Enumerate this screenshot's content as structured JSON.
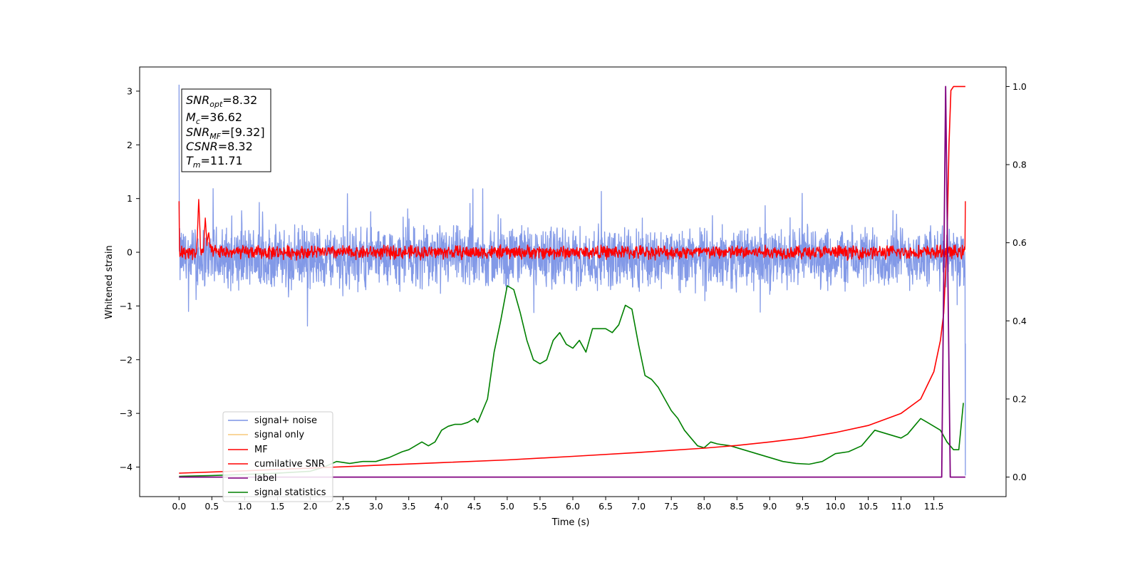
{
  "chart_data": {
    "type": "line",
    "xlabel": "Time (s)",
    "ylabel": "Whitened strain",
    "xlim": [
      -0.6,
      12.6
    ],
    "ylim": [
      -4.55,
      3.45
    ],
    "y2lim": [
      -0.05,
      1.05
    ],
    "x_ticks": [
      "0.0",
      "0.5",
      "1.0",
      "1.5",
      "2.0",
      "2.5",
      "3.0",
      "3.5",
      "4.0",
      "4.5",
      "5.0",
      "5.5",
      "6.0",
      "6.5",
      "7.0",
      "7.5",
      "8.0",
      "8.5",
      "9.0",
      "9.5",
      "10.0",
      "10.5",
      "11.0",
      "11.5"
    ],
    "y_ticks": [
      "3",
      "2",
      "1",
      "0",
      "−1",
      "−2",
      "−3",
      "−4"
    ],
    "y2_ticks": [
      "1.0",
      "0.8",
      "0.6",
      "0.4",
      "0.2",
      "0.0"
    ],
    "annotation": {
      "lines": [
        {
          "italic": "SNR",
          "sub": "opt",
          "rest": "=8.32"
        },
        {
          "italic": "M",
          "sub": "c",
          "rest": "=36.62"
        },
        {
          "italic": "SNR",
          "sub": "MF",
          "rest": "=[9.32]"
        },
        {
          "italic": "CSNR",
          "sub": "",
          "rest": "=8.32"
        },
        {
          "italic": "T",
          "sub": "m",
          "rest": "=11.71"
        }
      ]
    },
    "legend": {
      "placement": "lower-left",
      "entries": [
        {
          "label": "signal+ noise",
          "color": "#7b93e6"
        },
        {
          "label": "signal only",
          "color": "#f7c97a"
        },
        {
          "label": "MF",
          "color": "#ff0000"
        },
        {
          "label": "cumilative SNR",
          "color": "#ff0000"
        },
        {
          "label": "label",
          "color": "#800080"
        },
        {
          "label": "signal statistics",
          "color": "#008000"
        }
      ]
    },
    "series": [
      {
        "name": "signal+ noise",
        "color": "#7b93e6",
        "axis": "left",
        "kind": "noise",
        "x_range": [
          0.0,
          11.98
        ],
        "center": -0.1,
        "amplitude": 0.45,
        "spike_max": 1.6,
        "start_value": 3.12,
        "end_values": [
          -4.15,
          -1.7
        ]
      },
      {
        "name": "MF",
        "color": "#ff0000",
        "axis": "left",
        "kind": "noise",
        "x_range": [
          0.0,
          11.98
        ],
        "center": 0.0,
        "amplitude": 0.1,
        "start_value": 0.95,
        "end_value": 0.95,
        "bumps": [
          {
            "x": 0.3,
            "y": 1.0
          },
          {
            "x": 0.4,
            "y": 0.65
          },
          {
            "x": 0.45,
            "y": 0.4
          }
        ]
      },
      {
        "name": "cumilative SNR",
        "color": "#ff0000",
        "axis": "right",
        "x": [
          0.0,
          1.0,
          2.0,
          3.0,
          4.0,
          5.0,
          6.0,
          7.0,
          8.0,
          8.5,
          9.0,
          9.5,
          10.0,
          10.5,
          11.0,
          11.3,
          11.5,
          11.6,
          11.65,
          11.7,
          11.73,
          11.76,
          11.8,
          11.98
        ],
        "y": [
          0.01,
          0.016,
          0.023,
          0.03,
          0.037,
          0.044,
          0.053,
          0.063,
          0.074,
          0.081,
          0.09,
          0.1,
          0.114,
          0.132,
          0.163,
          0.2,
          0.27,
          0.35,
          0.42,
          0.6,
          0.85,
          0.99,
          1.0,
          1.0
        ]
      },
      {
        "name": "label",
        "color": "#800080",
        "axis": "right",
        "x": [
          0.0,
          11.62,
          11.68,
          11.75,
          11.76,
          11.98
        ],
        "y": [
          0.0,
          0.0,
          1.0,
          0.0,
          0.0,
          0.0
        ]
      },
      {
        "name": "signal statistics",
        "color": "#008000",
        "axis": "right",
        "x": [
          0.0,
          0.5,
          1.0,
          1.5,
          2.0,
          2.2,
          2.4,
          2.6,
          2.8,
          3.0,
          3.2,
          3.4,
          3.5,
          3.7,
          3.8,
          3.9,
          4.0,
          4.1,
          4.2,
          4.3,
          4.4,
          4.5,
          4.55,
          4.6,
          4.7,
          4.8,
          4.9,
          5.0,
          5.1,
          5.2,
          5.3,
          5.4,
          5.5,
          5.6,
          5.7,
          5.8,
          5.9,
          6.0,
          6.1,
          6.2,
          6.3,
          6.4,
          6.5,
          6.6,
          6.7,
          6.8,
          6.9,
          7.0,
          7.1,
          7.2,
          7.3,
          7.4,
          7.5,
          7.6,
          7.7,
          7.8,
          7.9,
          8.0,
          8.1,
          8.2,
          8.4,
          8.6,
          8.8,
          9.0,
          9.2,
          9.4,
          9.6,
          9.8,
          10.0,
          10.2,
          10.4,
          10.5,
          10.6,
          10.8,
          11.0,
          11.1,
          11.2,
          11.3,
          11.4,
          11.5,
          11.6,
          11.7,
          11.8,
          11.88,
          11.95
        ],
        "y": [
          0.002,
          0.004,
          0.007,
          0.01,
          0.015,
          0.025,
          0.04,
          0.035,
          0.04,
          0.04,
          0.05,
          0.065,
          0.07,
          0.09,
          0.08,
          0.09,
          0.12,
          0.13,
          0.135,
          0.135,
          0.14,
          0.15,
          0.14,
          0.16,
          0.2,
          0.32,
          0.4,
          0.49,
          0.48,
          0.42,
          0.35,
          0.3,
          0.29,
          0.3,
          0.35,
          0.37,
          0.34,
          0.33,
          0.35,
          0.32,
          0.38,
          0.38,
          0.38,
          0.37,
          0.39,
          0.44,
          0.43,
          0.34,
          0.26,
          0.25,
          0.23,
          0.2,
          0.17,
          0.15,
          0.12,
          0.1,
          0.08,
          0.075,
          0.09,
          0.085,
          0.08,
          0.07,
          0.06,
          0.05,
          0.04,
          0.035,
          0.033,
          0.04,
          0.06,
          0.065,
          0.08,
          0.1,
          0.12,
          0.11,
          0.1,
          0.11,
          0.13,
          0.15,
          0.14,
          0.13,
          0.12,
          0.09,
          0.07,
          0.07,
          0.19
        ]
      }
    ]
  }
}
